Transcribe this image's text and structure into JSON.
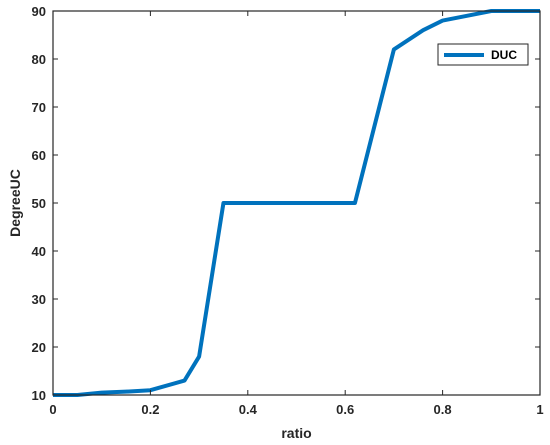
{
  "chart_data": {
    "type": "line",
    "xlabel": "ratio",
    "ylabel": "DegreeUC",
    "xlim": [
      0,
      1
    ],
    "ylim": [
      10,
      90
    ],
    "xticks": [
      "0",
      "0.2",
      "0.4",
      "0.6",
      "0.8",
      "1"
    ],
    "yticks": [
      "10",
      "20",
      "30",
      "40",
      "50",
      "60",
      "70",
      "80",
      "90"
    ],
    "grid": false,
    "legend_position": "top-right",
    "series": [
      {
        "name": "DUC",
        "color": "#0072BD",
        "x": [
          0,
          0.05,
          0.1,
          0.15,
          0.2,
          0.27,
          0.3,
          0.35,
          0.4,
          0.5,
          0.55,
          0.62,
          0.7,
          0.76,
          0.8,
          0.85,
          0.9,
          1.0
        ],
        "y": [
          10,
          10,
          10.5,
          10.7,
          11,
          13,
          18,
          50,
          50,
          50,
          50,
          50,
          82,
          86,
          88,
          89,
          90,
          90
        ]
      }
    ]
  }
}
